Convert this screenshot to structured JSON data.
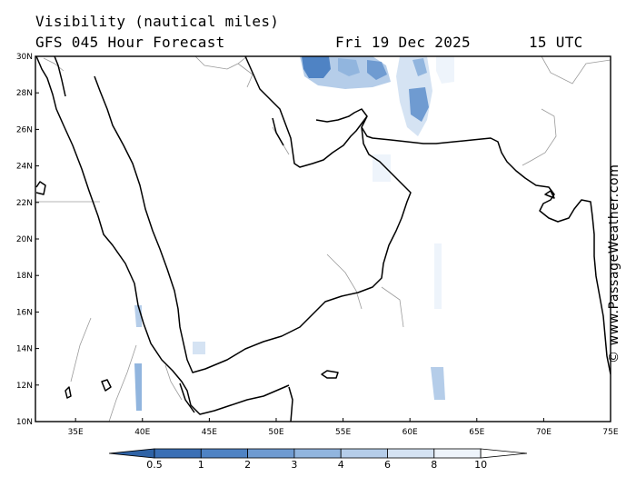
{
  "header": {
    "title_line1": "Visibility (nautical miles)",
    "model_line": "GFS 045 Hour Forecast",
    "date": "Fri 19 Dec 2025",
    "time": "15 UTC"
  },
  "map": {
    "lat_labels": [
      "30N",
      "28N",
      "26N",
      "24N",
      "22N",
      "20N",
      "18N",
      "16N",
      "14N",
      "12N",
      "10N"
    ],
    "lon_labels": [
      "35E",
      "40E",
      "45E",
      "50E",
      "55E",
      "60E",
      "65E",
      "70E",
      "75E"
    ],
    "extent": {
      "lon_min": 32,
      "lon_max": 75,
      "lat_min": 10,
      "lat_max": 30
    }
  },
  "colorbar": {
    "tick_labels": [
      "0.5",
      "1",
      "2",
      "3",
      "4",
      "6",
      "8",
      "10"
    ],
    "colors": [
      "#3a6fb5",
      "#4f83c4",
      "#6f9bd1",
      "#91b5de",
      "#b5cde9",
      "#d5e3f3",
      "#eef4fb",
      "#ffffff"
    ]
  },
  "credit": "© www.PassageWeather.com"
}
